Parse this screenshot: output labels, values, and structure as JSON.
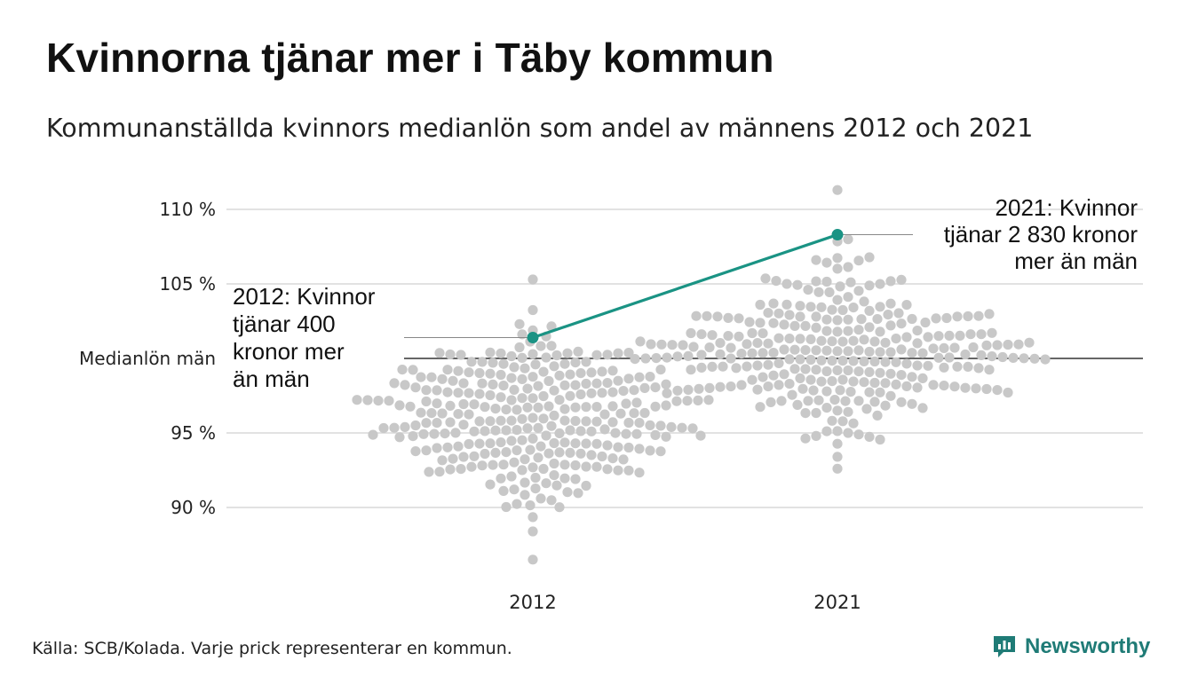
{
  "title": "Kvinnorna tjänar mer i Täby kommun",
  "subtitle": "Kommunanställda kvinnors medianlön som andel av männens 2012 och 2021",
  "source": "Källa: SCB/Kolada. Varje prick representerar en kommun.",
  "brand": {
    "name": "Newsworthy",
    "color": "#1f7b76",
    "icon": "bar-chart-speech-bubble-icon"
  },
  "colors": {
    "highlight": "#1a9384",
    "dots": "#c8c8c8",
    "grid": "#e2e2e2",
    "baseline": "#333333"
  },
  "chart_data": {
    "type": "scatter",
    "subtype": "beeswarm",
    "categories": [
      "2012",
      "2021"
    ],
    "y_ticks": [
      {
        "value": 90,
        "label": "90 %"
      },
      {
        "value": 95,
        "label": "95 %"
      },
      {
        "value": 100,
        "label": "Medianlön män"
      },
      {
        "value": 105,
        "label": "105 %"
      },
      {
        "value": 110,
        "label": "110 %"
      }
    ],
    "ylim": [
      86.5,
      111.5
    ],
    "grid": true,
    "reference_line": {
      "value": 100,
      "label": "Medianlön män"
    },
    "highlight": {
      "name": "Täby",
      "values": [
        101.4,
        108.3
      ],
      "annotations": [
        {
          "category": "2012",
          "lines": [
            "2012: Kvinnor",
            "tjänar 400",
            "kronor mer",
            "än män"
          ]
        },
        {
          "category": "2021",
          "lines": [
            "2021: Kvinnor",
            "tjänar 2 830 kronor",
            "mer än män"
          ]
        }
      ]
    },
    "distributions": [
      {
        "category": "2012",
        "count": 290,
        "min": 86.5,
        "max": 105.3,
        "center": 96.0,
        "spread": 2.9
      },
      {
        "category": "2021",
        "count": 290,
        "min": 92.6,
        "max": 111.3,
        "center": 100.5,
        "spread": 2.7
      }
    ]
  }
}
